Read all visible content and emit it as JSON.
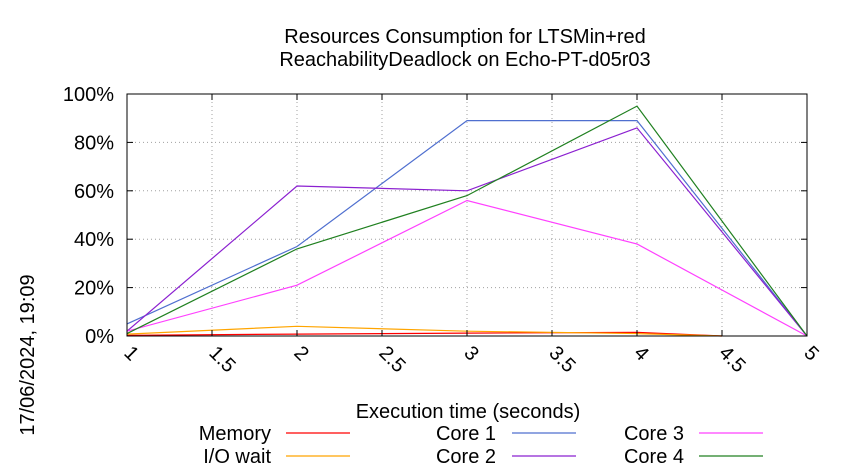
{
  "chart_data": {
    "type": "line",
    "title_lines": [
      "Resources Consumption for LTSMin+red",
      "ReachabilityDeadlock on Echo-PT-d05r03"
    ],
    "xlabel": "Execution time (seconds)",
    "ylabel": "",
    "side_label": "17/06/2024, 19:09",
    "xlim": [
      1,
      5
    ],
    "ylim": [
      0,
      100
    ],
    "x_ticks": [
      1,
      1.5,
      2,
      2.5,
      3,
      3.5,
      4,
      4.5,
      5
    ],
    "x_tick_labels": [
      "1",
      "1.5",
      "2",
      "2.5",
      "3",
      "3.5",
      "4",
      "4.5",
      "5"
    ],
    "y_ticks": [
      0,
      20,
      40,
      60,
      80,
      100
    ],
    "y_tick_labels": [
      "0%",
      "20%",
      "40%",
      "60%",
      "80%",
      "100%"
    ],
    "grid": true,
    "legend_position": "bottom",
    "series": [
      {
        "name": "Memory",
        "color": "#ff0000",
        "x": [
          1,
          2,
          3,
          4,
          4.5
        ],
        "y": [
          0.3,
          0.8,
          1.2,
          1.5,
          0
        ]
      },
      {
        "name": "I/O wait",
        "color": "#ffa500",
        "x": [
          1,
          2,
          3,
          4,
          4.5
        ],
        "y": [
          0.8,
          4.0,
          2.0,
          1.0,
          0
        ]
      },
      {
        "name": "Core 1",
        "color": "#4f6fcf",
        "x": [
          1,
          2,
          3,
          4,
          5
        ],
        "y": [
          5,
          37,
          89,
          89,
          0
        ]
      },
      {
        "name": "Core 2",
        "color": "#8b20d0",
        "x": [
          1,
          2,
          3,
          4,
          5
        ],
        "y": [
          2,
          62,
          60,
          86,
          0
        ]
      },
      {
        "name": "Core 3",
        "color": "#ff40ff",
        "x": [
          1,
          2,
          3,
          4,
          5
        ],
        "y": [
          2,
          21,
          56,
          38,
          0
        ]
      },
      {
        "name": "Core 4",
        "color": "#208020",
        "x": [
          1,
          2,
          3,
          4,
          5
        ],
        "y": [
          1,
          36,
          58,
          95,
          0
        ]
      }
    ]
  }
}
